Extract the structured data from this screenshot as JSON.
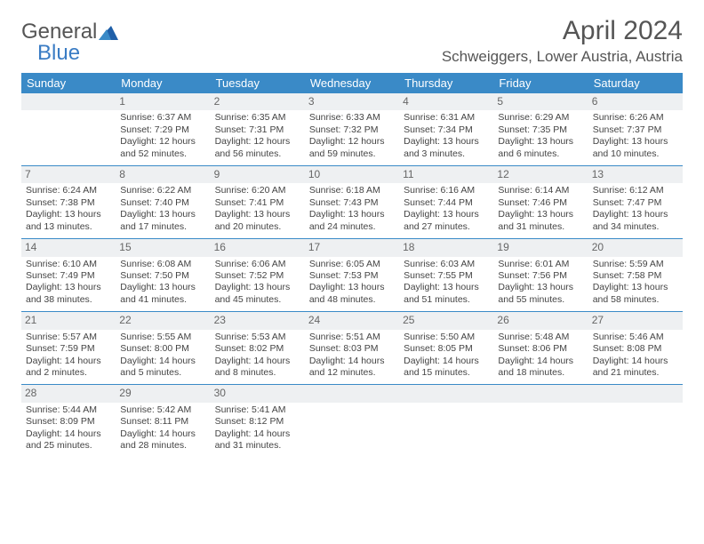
{
  "logo": {
    "general": "General",
    "blue": "Blue"
  },
  "month_title": "April 2024",
  "location": "Schweiggers, Lower Austria, Austria",
  "weekday_headers": [
    "Sunday",
    "Monday",
    "Tuesday",
    "Wednesday",
    "Thursday",
    "Friday",
    "Saturday"
  ],
  "colors": {
    "header_bg": "#3a8ac7",
    "header_fg": "#ffffff",
    "daynum_bg": "#eef0f2",
    "rule": "#3a8ac7",
    "text": "#444444",
    "title": "#555555",
    "logo_blue": "#3a7cc4"
  },
  "weeks": [
    [
      null,
      {
        "n": "1",
        "sr": "Sunrise: 6:37 AM",
        "ss": "Sunset: 7:29 PM",
        "d1": "Daylight: 12 hours",
        "d2": "and 52 minutes."
      },
      {
        "n": "2",
        "sr": "Sunrise: 6:35 AM",
        "ss": "Sunset: 7:31 PM",
        "d1": "Daylight: 12 hours",
        "d2": "and 56 minutes."
      },
      {
        "n": "3",
        "sr": "Sunrise: 6:33 AM",
        "ss": "Sunset: 7:32 PM",
        "d1": "Daylight: 12 hours",
        "d2": "and 59 minutes."
      },
      {
        "n": "4",
        "sr": "Sunrise: 6:31 AM",
        "ss": "Sunset: 7:34 PM",
        "d1": "Daylight: 13 hours",
        "d2": "and 3 minutes."
      },
      {
        "n": "5",
        "sr": "Sunrise: 6:29 AM",
        "ss": "Sunset: 7:35 PM",
        "d1": "Daylight: 13 hours",
        "d2": "and 6 minutes."
      },
      {
        "n": "6",
        "sr": "Sunrise: 6:26 AM",
        "ss": "Sunset: 7:37 PM",
        "d1": "Daylight: 13 hours",
        "d2": "and 10 minutes."
      }
    ],
    [
      {
        "n": "7",
        "sr": "Sunrise: 6:24 AM",
        "ss": "Sunset: 7:38 PM",
        "d1": "Daylight: 13 hours",
        "d2": "and 13 minutes."
      },
      {
        "n": "8",
        "sr": "Sunrise: 6:22 AM",
        "ss": "Sunset: 7:40 PM",
        "d1": "Daylight: 13 hours",
        "d2": "and 17 minutes."
      },
      {
        "n": "9",
        "sr": "Sunrise: 6:20 AM",
        "ss": "Sunset: 7:41 PM",
        "d1": "Daylight: 13 hours",
        "d2": "and 20 minutes."
      },
      {
        "n": "10",
        "sr": "Sunrise: 6:18 AM",
        "ss": "Sunset: 7:43 PM",
        "d1": "Daylight: 13 hours",
        "d2": "and 24 minutes."
      },
      {
        "n": "11",
        "sr": "Sunrise: 6:16 AM",
        "ss": "Sunset: 7:44 PM",
        "d1": "Daylight: 13 hours",
        "d2": "and 27 minutes."
      },
      {
        "n": "12",
        "sr": "Sunrise: 6:14 AM",
        "ss": "Sunset: 7:46 PM",
        "d1": "Daylight: 13 hours",
        "d2": "and 31 minutes."
      },
      {
        "n": "13",
        "sr": "Sunrise: 6:12 AM",
        "ss": "Sunset: 7:47 PM",
        "d1": "Daylight: 13 hours",
        "d2": "and 34 minutes."
      }
    ],
    [
      {
        "n": "14",
        "sr": "Sunrise: 6:10 AM",
        "ss": "Sunset: 7:49 PM",
        "d1": "Daylight: 13 hours",
        "d2": "and 38 minutes."
      },
      {
        "n": "15",
        "sr": "Sunrise: 6:08 AM",
        "ss": "Sunset: 7:50 PM",
        "d1": "Daylight: 13 hours",
        "d2": "and 41 minutes."
      },
      {
        "n": "16",
        "sr": "Sunrise: 6:06 AM",
        "ss": "Sunset: 7:52 PM",
        "d1": "Daylight: 13 hours",
        "d2": "and 45 minutes."
      },
      {
        "n": "17",
        "sr": "Sunrise: 6:05 AM",
        "ss": "Sunset: 7:53 PM",
        "d1": "Daylight: 13 hours",
        "d2": "and 48 minutes."
      },
      {
        "n": "18",
        "sr": "Sunrise: 6:03 AM",
        "ss": "Sunset: 7:55 PM",
        "d1": "Daylight: 13 hours",
        "d2": "and 51 minutes."
      },
      {
        "n": "19",
        "sr": "Sunrise: 6:01 AM",
        "ss": "Sunset: 7:56 PM",
        "d1": "Daylight: 13 hours",
        "d2": "and 55 minutes."
      },
      {
        "n": "20",
        "sr": "Sunrise: 5:59 AM",
        "ss": "Sunset: 7:58 PM",
        "d1": "Daylight: 13 hours",
        "d2": "and 58 minutes."
      }
    ],
    [
      {
        "n": "21",
        "sr": "Sunrise: 5:57 AM",
        "ss": "Sunset: 7:59 PM",
        "d1": "Daylight: 14 hours",
        "d2": "and 2 minutes."
      },
      {
        "n": "22",
        "sr": "Sunrise: 5:55 AM",
        "ss": "Sunset: 8:00 PM",
        "d1": "Daylight: 14 hours",
        "d2": "and 5 minutes."
      },
      {
        "n": "23",
        "sr": "Sunrise: 5:53 AM",
        "ss": "Sunset: 8:02 PM",
        "d1": "Daylight: 14 hours",
        "d2": "and 8 minutes."
      },
      {
        "n": "24",
        "sr": "Sunrise: 5:51 AM",
        "ss": "Sunset: 8:03 PM",
        "d1": "Daylight: 14 hours",
        "d2": "and 12 minutes."
      },
      {
        "n": "25",
        "sr": "Sunrise: 5:50 AM",
        "ss": "Sunset: 8:05 PM",
        "d1": "Daylight: 14 hours",
        "d2": "and 15 minutes."
      },
      {
        "n": "26",
        "sr": "Sunrise: 5:48 AM",
        "ss": "Sunset: 8:06 PM",
        "d1": "Daylight: 14 hours",
        "d2": "and 18 minutes."
      },
      {
        "n": "27",
        "sr": "Sunrise: 5:46 AM",
        "ss": "Sunset: 8:08 PM",
        "d1": "Daylight: 14 hours",
        "d2": "and 21 minutes."
      }
    ],
    [
      {
        "n": "28",
        "sr": "Sunrise: 5:44 AM",
        "ss": "Sunset: 8:09 PM",
        "d1": "Daylight: 14 hours",
        "d2": "and 25 minutes."
      },
      {
        "n": "29",
        "sr": "Sunrise: 5:42 AM",
        "ss": "Sunset: 8:11 PM",
        "d1": "Daylight: 14 hours",
        "d2": "and 28 minutes."
      },
      {
        "n": "30",
        "sr": "Sunrise: 5:41 AM",
        "ss": "Sunset: 8:12 PM",
        "d1": "Daylight: 14 hours",
        "d2": "and 31 minutes."
      },
      null,
      null,
      null,
      null
    ]
  ]
}
